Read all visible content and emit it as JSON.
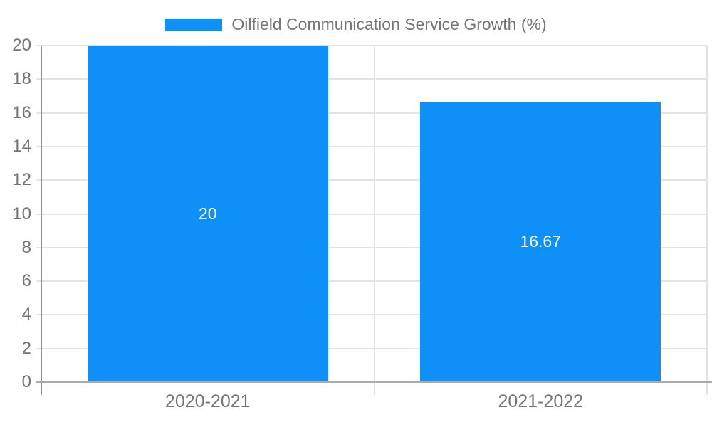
{
  "chart_data": {
    "type": "bar",
    "legend_label": "Oilfield Communication Service Growth (%)",
    "categories": [
      "2020-2021",
      "2021-2022"
    ],
    "values": [
      20,
      16.67
    ],
    "bar_labels": [
      "20",
      "16.67"
    ],
    "ylim": [
      0,
      20
    ],
    "yticks": [
      0,
      2,
      4,
      6,
      8,
      10,
      12,
      14,
      16,
      18,
      20
    ],
    "grid": true,
    "legend_position": "top-center",
    "colors": {
      "bar": "#0e90f8",
      "bar_label": "#ffffff",
      "axis_text": "#757575",
      "gridline": "#e3e3e3",
      "x_axis_line": "#ababab",
      "y_axis_line": "#8f8f8f"
    }
  }
}
